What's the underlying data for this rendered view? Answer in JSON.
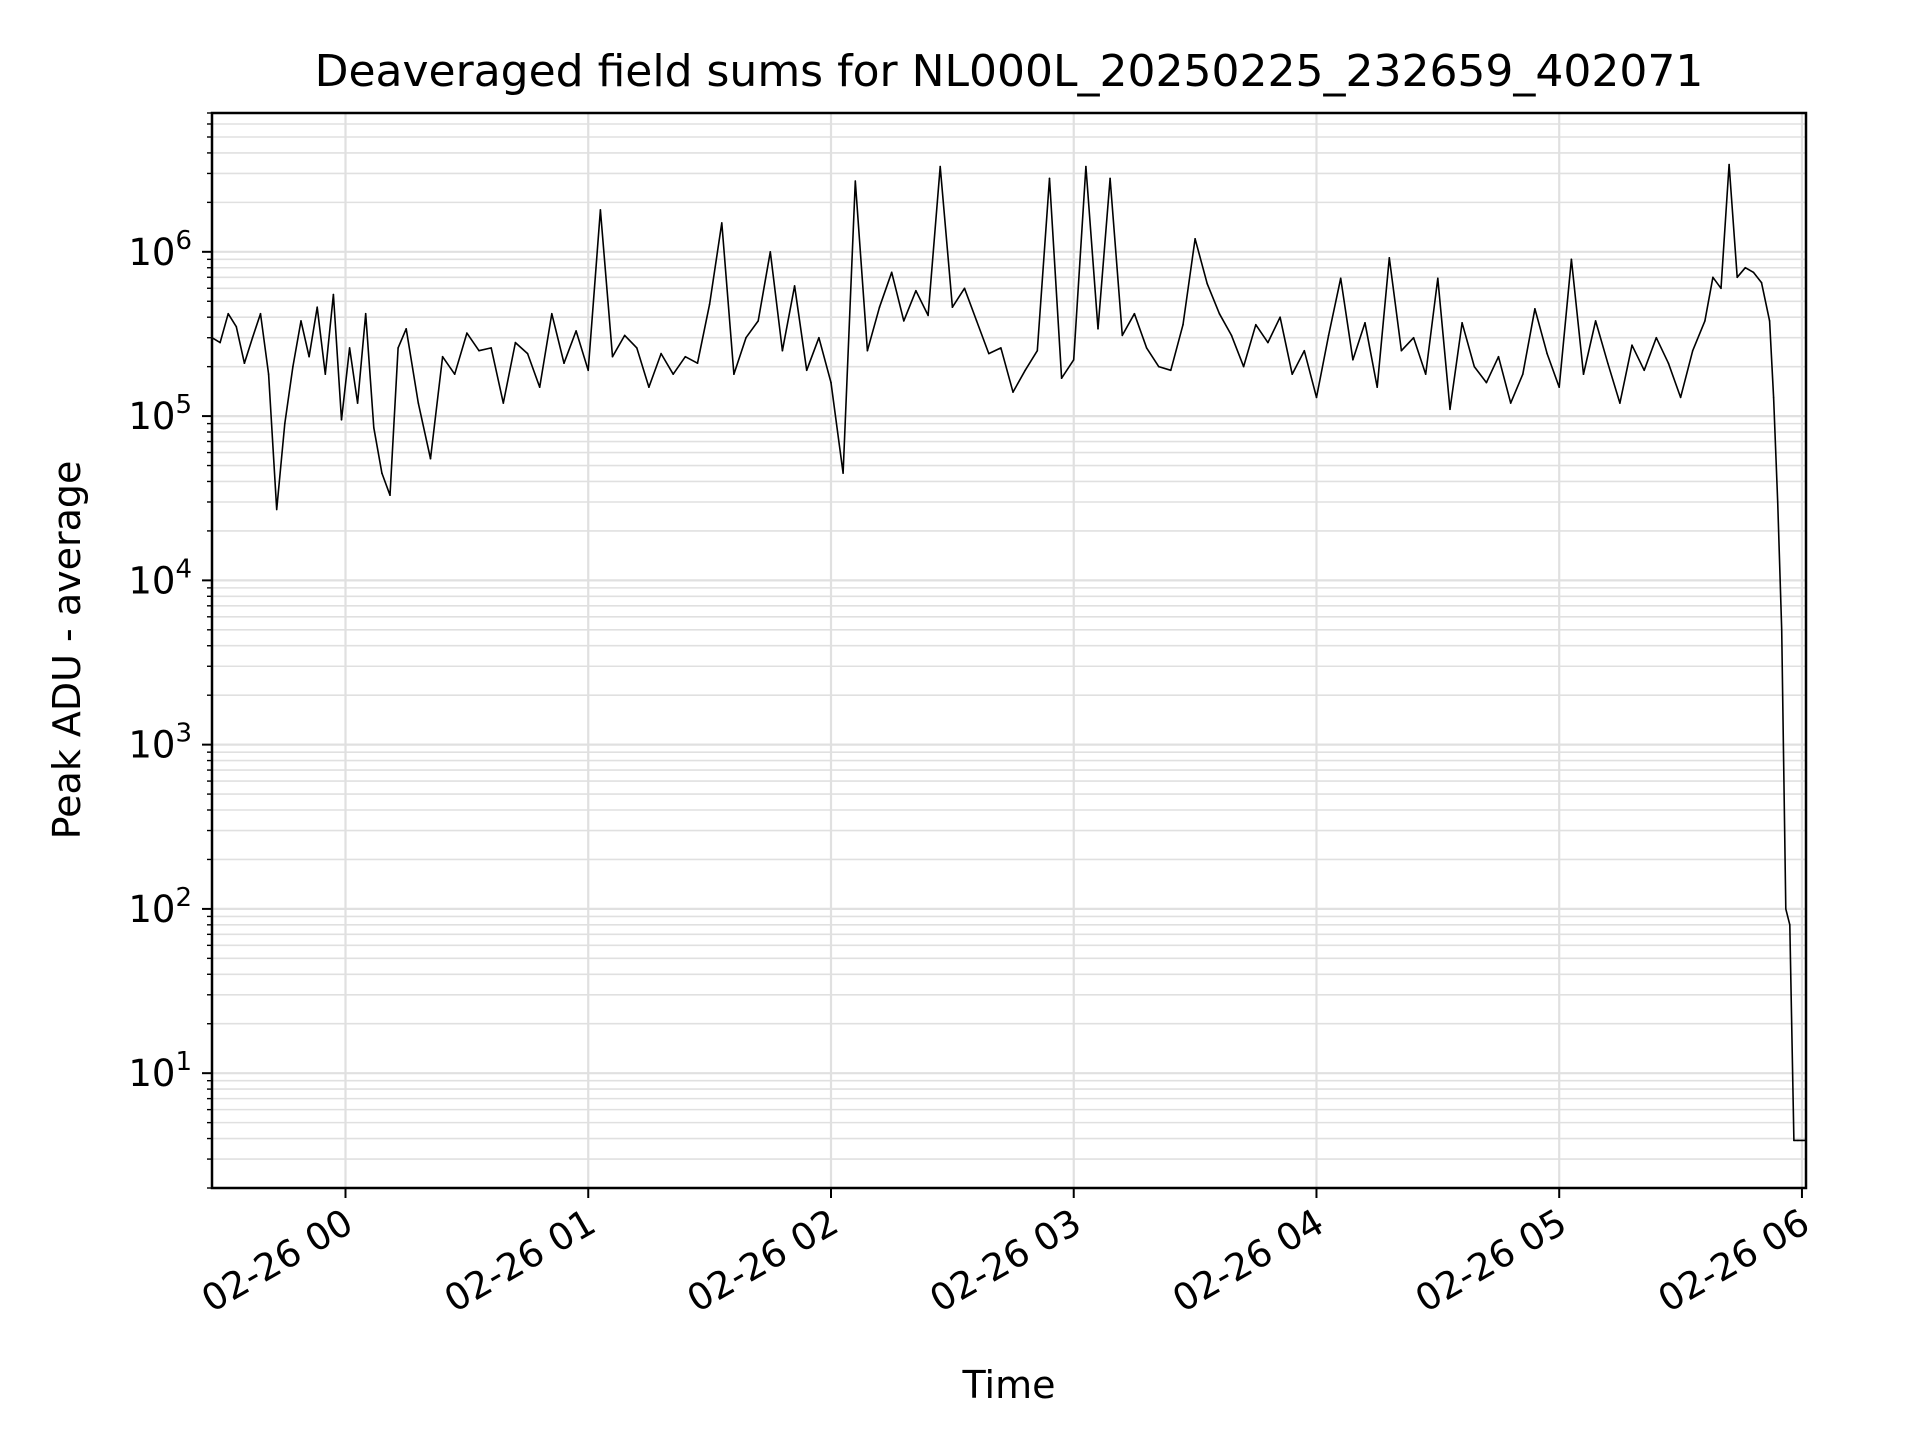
{
  "chart_data": {
    "type": "line",
    "title": "Deaveraged field sums for NL000L_20250225_232659_402071",
    "xlabel": "Time",
    "ylabel": "Peak ADU - average",
    "yscale": "log",
    "ylim": [
      2.0,
      7000000
    ],
    "xlim": [
      "02-25 23:27",
      "02-26 06:01"
    ],
    "x_tick_labels": [
      "02-26 00",
      "02-26 01",
      "02-26 02",
      "02-26 03",
      "02-26 04",
      "02-26 05",
      "02-26 06"
    ],
    "x_tick_times": [
      "02-26 00:00",
      "02-26 01:00",
      "02-26 02:00",
      "02-26 03:00",
      "02-26 04:00",
      "02-26 05:00",
      "02-26 06:00"
    ],
    "y_tick_values": [
      10,
      100,
      1000,
      10000,
      100000,
      1000000
    ],
    "y_tick_labels": [
      {
        "base": "10",
        "exp": "1"
      },
      {
        "base": "10",
        "exp": "2"
      },
      {
        "base": "10",
        "exp": "3"
      },
      {
        "base": "10",
        "exp": "4"
      },
      {
        "base": "10",
        "exp": "5"
      },
      {
        "base": "10",
        "exp": "6"
      }
    ],
    "grid": true,
    "line_color": "#000000",
    "grid_color": "#e0e0e0",
    "series": [
      {
        "x": [
          "02-25 23:27",
          "02-25 23:29",
          "02-25 23:31",
          "02-25 23:33",
          "02-25 23:35",
          "02-25 23:37",
          "02-25 23:39",
          "02-25 23:41",
          "02-25 23:43",
          "02-25 23:45",
          "02-25 23:47",
          "02-25 23:49",
          "02-25 23:51",
          "02-25 23:53",
          "02-25 23:55",
          "02-25 23:57",
          "02-25 23:59",
          "02-26 00:01",
          "02-26 00:03",
          "02-26 00:05",
          "02-26 00:07",
          "02-26 00:09",
          "02-26 00:11",
          "02-26 00:13",
          "02-26 00:15",
          "02-26 00:18",
          "02-26 00:21",
          "02-26 00:24",
          "02-26 00:27",
          "02-26 00:30",
          "02-26 00:33",
          "02-26 00:36",
          "02-26 00:39",
          "02-26 00:42",
          "02-26 00:45",
          "02-26 00:48",
          "02-26 00:51",
          "02-26 00:54",
          "02-26 00:57",
          "02-26 01:00",
          "02-26 01:03",
          "02-26 01:06",
          "02-26 01:09",
          "02-26 01:12",
          "02-26 01:15",
          "02-26 01:18",
          "02-26 01:21",
          "02-26 01:24",
          "02-26 01:27",
          "02-26 01:30",
          "02-26 01:33",
          "02-26 01:36",
          "02-26 01:39",
          "02-26 01:42",
          "02-26 01:45",
          "02-26 01:48",
          "02-26 01:51",
          "02-26 01:54",
          "02-26 01:57",
          "02-26 02:00",
          "02-26 02:03",
          "02-26 02:06",
          "02-26 02:09",
          "02-26 02:12",
          "02-26 02:15",
          "02-26 02:18",
          "02-26 02:21",
          "02-26 02:24",
          "02-26 02:27",
          "02-26 02:30",
          "02-26 02:33",
          "02-26 02:36",
          "02-26 02:39",
          "02-26 02:42",
          "02-26 02:45",
          "02-26 02:48",
          "02-26 02:51",
          "02-26 02:54",
          "02-26 02:57",
          "02-26 03:00",
          "02-26 03:03",
          "02-26 03:06",
          "02-26 03:09",
          "02-26 03:12",
          "02-26 03:15",
          "02-26 03:18",
          "02-26 03:21",
          "02-26 03:24",
          "02-26 03:27",
          "02-26 03:30",
          "02-26 03:33",
          "02-26 03:36",
          "02-26 03:39",
          "02-26 03:42",
          "02-26 03:45",
          "02-26 03:48",
          "02-26 03:51",
          "02-26 03:54",
          "02-26 03:57",
          "02-26 04:00",
          "02-26 04:03",
          "02-26 04:06",
          "02-26 04:09",
          "02-26 04:12",
          "02-26 04:15",
          "02-26 04:18",
          "02-26 04:21",
          "02-26 04:24",
          "02-26 04:27",
          "02-26 04:30",
          "02-26 04:33",
          "02-26 04:36",
          "02-26 04:39",
          "02-26 04:42",
          "02-26 04:45",
          "02-26 04:48",
          "02-26 04:51",
          "02-26 04:54",
          "02-26 04:57",
          "02-26 05:00",
          "02-26 05:03",
          "02-26 05:06",
          "02-26 05:09",
          "02-26 05:12",
          "02-26 05:15",
          "02-26 05:18",
          "02-26 05:21",
          "02-26 05:24",
          "02-26 05:27",
          "02-26 05:30",
          "02-26 05:33",
          "02-26 05:36",
          "02-26 05:38",
          "02-26 05:40",
          "02-26 05:42",
          "02-26 05:44",
          "02-26 05:46",
          "02-26 05:48",
          "02-26 05:50",
          "02-26 05:52",
          "02-26 05:53",
          "02-26 05:54",
          "02-26 05:55",
          "02-26 05:56",
          "02-26 05:57",
          "02-26 05:58",
          "02-26 05:59",
          "02-26 06:00",
          "02-26 06:01"
        ],
        "values": [
          300000,
          280000,
          420000,
          350000,
          210000,
          300000,
          420000,
          180000,
          27000,
          90000,
          200000,
          380000,
          230000,
          460000,
          180000,
          550000,
          95000,
          260000,
          120000,
          420000,
          85000,
          45000,
          33000,
          260000,
          340000,
          120000,
          55000,
          230000,
          180000,
          320000,
          250000,
          260000,
          120000,
          280000,
          240000,
          150000,
          420000,
          210000,
          330000,
          190000,
          1800000,
          230000,
          310000,
          260000,
          150000,
          240000,
          180000,
          230000,
          210000,
          480000,
          1500000,
          180000,
          300000,
          380000,
          1000000,
          250000,
          620000,
          190000,
          300000,
          160000,
          45000,
          2700000,
          250000,
          460000,
          750000,
          380000,
          580000,
          410000,
          3300000,
          460000,
          600000,
          380000,
          240000,
          260000,
          140000,
          190000,
          250000,
          2800000,
          170000,
          220000,
          3300000,
          340000,
          2800000,
          310000,
          420000,
          260000,
          200000,
          190000,
          360000,
          1200000,
          640000,
          420000,
          310000,
          200000,
          360000,
          280000,
          400000,
          180000,
          250000,
          130000,
          310000,
          690000,
          220000,
          370000,
          150000,
          920000,
          250000,
          300000,
          180000,
          690000,
          110000,
          370000,
          200000,
          160000,
          230000,
          120000,
          180000,
          450000,
          240000,
          150000,
          900000,
          180000,
          380000,
          210000,
          120000,
          270000,
          190000,
          300000,
          210000,
          130000,
          250000,
          380000,
          700000,
          600000,
          3400000,
          700000,
          800000,
          750000,
          650000,
          380000,
          130000,
          30000,
          5000,
          100,
          80,
          3.9,
          3.9,
          3.9,
          3.9
        ]
      }
    ]
  }
}
